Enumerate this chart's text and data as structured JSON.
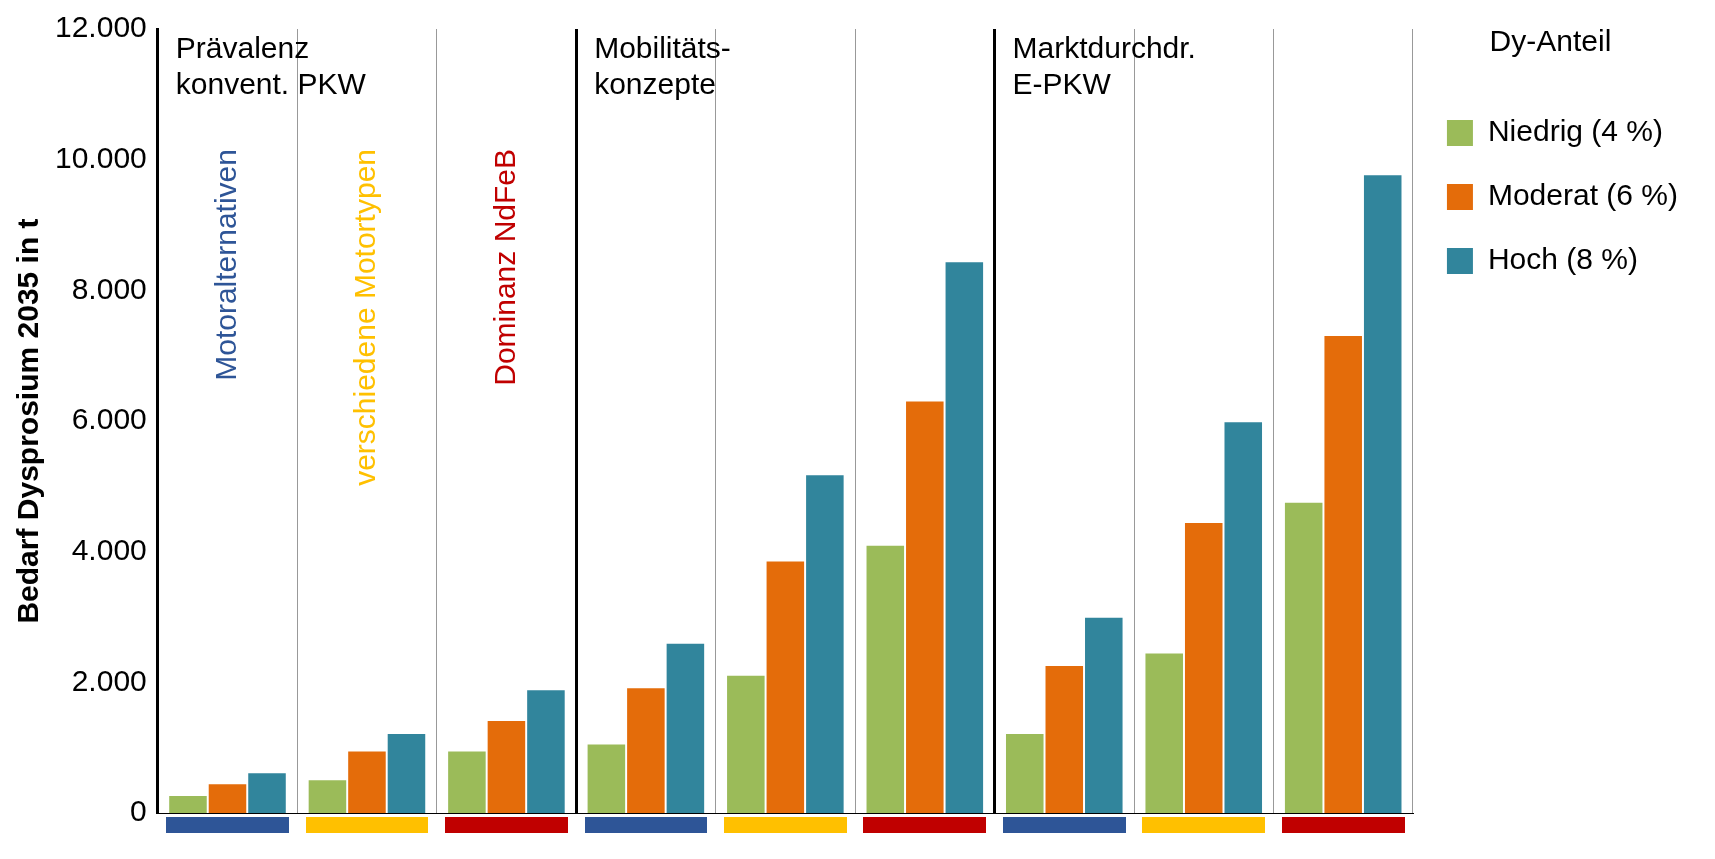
{
  "chart_data": {
    "type": "bar",
    "ylabel": "Bedarf Dysprosium 2035 in t",
    "legend_title": "Dy-Anteil",
    "categories": [
      null,
      null,
      null,
      null,
      null,
      null,
      null,
      null,
      null
    ],
    "series": [
      {
        "name": "Niedrig (4 %)",
        "color": "#9bbb59",
        "values": [
          260,
          500,
          940,
          1050,
          2100,
          4090,
          1210,
          2440,
          4750
        ]
      },
      {
        "name": "Moderat (6 %)",
        "color": "#e46c0a",
        "values": [
          440,
          940,
          1410,
          1910,
          3850,
          6300,
          2250,
          4440,
          7300
        ]
      },
      {
        "name": "Hoch (8 %)",
        "color": "#31859c",
        "values": [
          610,
          1210,
          1880,
          2590,
          5170,
          8430,
          2990,
          5980,
          9760
        ]
      }
    ],
    "ylim": [
      0,
      12000
    ],
    "yticks": [
      {
        "value": 0,
        "label": "0"
      },
      {
        "value": 2000,
        "label": "2.000"
      },
      {
        "value": 4000,
        "label": "4.000"
      },
      {
        "value": 6000,
        "label": "6.000"
      },
      {
        "value": 8000,
        "label": "8.000"
      },
      {
        "value": 10000,
        "label": "10.000"
      },
      {
        "value": 12000,
        "label": "12.000"
      }
    ],
    "grid": "x",
    "legend": "right",
    "annotations": [
      "Prävalenz\nkonvent. PKW",
      "Mobilitäts-\nkonzepte",
      "Marktdurchdr.\nE-PKW",
      "Motoralternativen",
      "verschiedene Motortypen",
      "Dominanz NdFeB"
    ]
  }
}
